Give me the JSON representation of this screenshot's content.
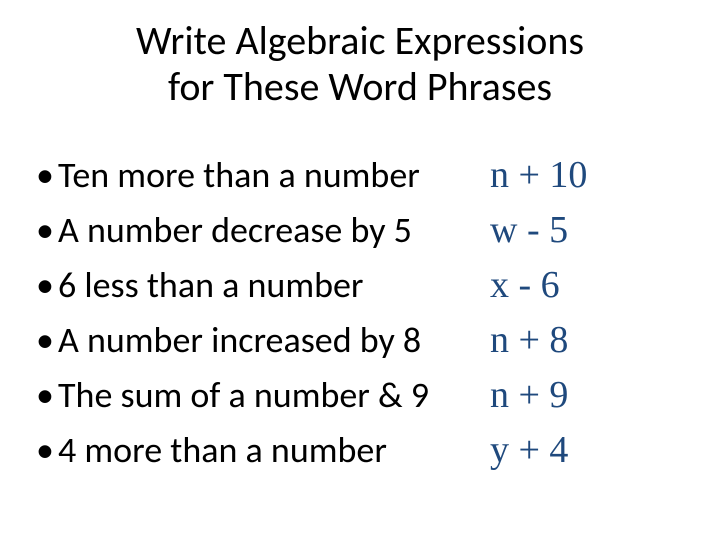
{
  "title_line1": "Write Algebraic Expressions",
  "title_line2": "for These Word Phrases",
  "colors": {
    "text": "#000000",
    "expression": "#1f497d",
    "background": "#ffffff"
  },
  "typography": {
    "title_fontsize": 40,
    "body_fontsize": 36,
    "expression_fontsize": 38,
    "title_family": "Calibri",
    "expression_family": "Times New Roman"
  },
  "items": [
    {
      "phrase": "Ten more than a number",
      "expression": "n + 10"
    },
    {
      "phrase": "A number decrease by 5",
      "expression": "w - 5"
    },
    {
      "phrase": "6 less than a number",
      "expression": "x - 6"
    },
    {
      "phrase": "A number increased by 8",
      "expression": "n + 8"
    },
    {
      "phrase": "The sum of a number & 9",
      "expression": "n + 9"
    },
    {
      "phrase": "4 more than a number",
      "expression": "y + 4"
    }
  ],
  "bullet_glyph": "•"
}
